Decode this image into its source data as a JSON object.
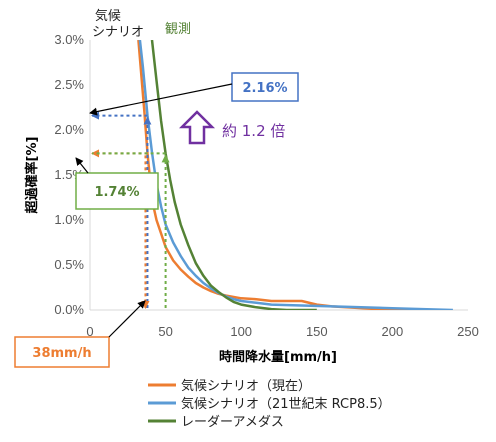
{
  "chart_data": {
    "type": "line",
    "xlabel": "時間降水量[mm/h]",
    "ylabel": "超過確率[%]",
    "xlim": [
      0,
      250
    ],
    "ylim": [
      0,
      3.0
    ],
    "x_ticks": [
      "0",
      "50",
      "100",
      "150",
      "200",
      "250"
    ],
    "y_ticks": [
      "0.0%",
      "0.5%",
      "1.0%",
      "1.5%",
      "2.0%",
      "2.5%",
      "3.0%"
    ],
    "grid": false,
    "legend_position": "bottom",
    "series": [
      {
        "name": "気候シナリオ（現在）",
        "color": "#ED7D31",
        "points": [
          [
            32,
            3.0
          ],
          [
            34,
            2.6
          ],
          [
            36,
            2.2
          ],
          [
            38,
            1.74
          ],
          [
            40,
            1.4
          ],
          [
            42,
            1.15
          ],
          [
            44,
            1.0
          ],
          [
            47,
            0.85
          ],
          [
            50,
            0.7
          ],
          [
            55,
            0.55
          ],
          [
            60,
            0.45
          ],
          [
            65,
            0.37
          ],
          [
            70,
            0.3
          ],
          [
            75,
            0.25
          ],
          [
            80,
            0.21
          ],
          [
            85,
            0.18
          ],
          [
            90,
            0.16
          ],
          [
            100,
            0.13
          ],
          [
            110,
            0.12
          ],
          [
            120,
            0.1
          ],
          [
            140,
            0.1
          ],
          [
            150,
            0.06
          ],
          [
            160,
            0.04
          ],
          [
            200,
            0.0
          ],
          [
            220,
            0.0
          ]
        ]
      },
      {
        "name": "気候シナリオ（21世紀末 RCP8.5）",
        "color": "#5B9BD5",
        "points": [
          [
            33,
            3.0
          ],
          [
            35,
            2.7
          ],
          [
            38,
            2.16
          ],
          [
            41,
            1.75
          ],
          [
            44,
            1.4
          ],
          [
            47,
            1.15
          ],
          [
            50,
            0.95
          ],
          [
            55,
            0.75
          ],
          [
            60,
            0.6
          ],
          [
            65,
            0.47
          ],
          [
            70,
            0.38
          ],
          [
            75,
            0.3
          ],
          [
            80,
            0.24
          ],
          [
            85,
            0.19
          ],
          [
            90,
            0.15
          ],
          [
            95,
            0.12
          ],
          [
            100,
            0.1
          ],
          [
            110,
            0.08
          ],
          [
            120,
            0.06
          ],
          [
            140,
            0.05
          ],
          [
            160,
            0.04
          ],
          [
            200,
            0.02
          ],
          [
            240,
            0.0
          ]
        ]
      },
      {
        "name": "レーダーアメダス",
        "color": "#548235",
        "points": [
          [
            41,
            3.0
          ],
          [
            44,
            2.55
          ],
          [
            47,
            2.1
          ],
          [
            50,
            1.74
          ],
          [
            53,
            1.45
          ],
          [
            56,
            1.2
          ],
          [
            60,
            0.95
          ],
          [
            65,
            0.72
          ],
          [
            70,
            0.52
          ],
          [
            75,
            0.38
          ],
          [
            80,
            0.27
          ],
          [
            85,
            0.2
          ],
          [
            90,
            0.14
          ],
          [
            95,
            0.09
          ],
          [
            100,
            0.06
          ],
          [
            110,
            0.03
          ],
          [
            120,
            0.01
          ],
          [
            130,
            0.0
          ],
          [
            150,
            0.0
          ]
        ]
      }
    ],
    "annotations": {
      "climate_scenario": "気候\nシナリオ",
      "observation": "観測",
      "rcp_value": "2.16%",
      "obs_value": "1.74%",
      "threshold": "38mm/h",
      "ratio": "約 1.2 倍"
    },
    "colors": {
      "orange": "#ED7D31",
      "blue": "#5B9BD5",
      "green": "#548235",
      "purple": "#7030A0",
      "box_blue": "#4472C4",
      "box_green": "#70AD47",
      "box_orange": "#ED7D31"
    }
  }
}
